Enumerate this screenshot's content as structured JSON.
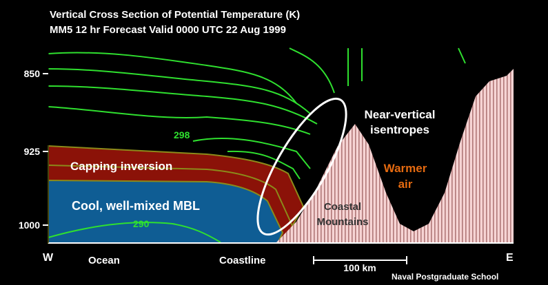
{
  "header": {
    "title": "Vertical Cross Section of Potential Temperature (K)",
    "subtitle": "MM5 12 hr Forecast Valid 0000 UTC  22 Aug 1999"
  },
  "axis": {
    "pressure_labels": [
      "850",
      "925",
      "1000"
    ],
    "west": "W",
    "east": "E",
    "ocean": "Ocean",
    "coastline": "Coastline",
    "scale": "100 km"
  },
  "contours": {
    "upper": "298",
    "lower": "290"
  },
  "regions": {
    "capping": "Capping inversion",
    "mbl": "Cool, well-mixed MBL",
    "near_vertical": [
      "Near-vertical",
      "isentropes"
    ],
    "warmer": [
      "Warmer",
      "air"
    ],
    "mountains": [
      "Coastal",
      "Mountains"
    ]
  },
  "credit": "Naval Postgraduate School"
}
